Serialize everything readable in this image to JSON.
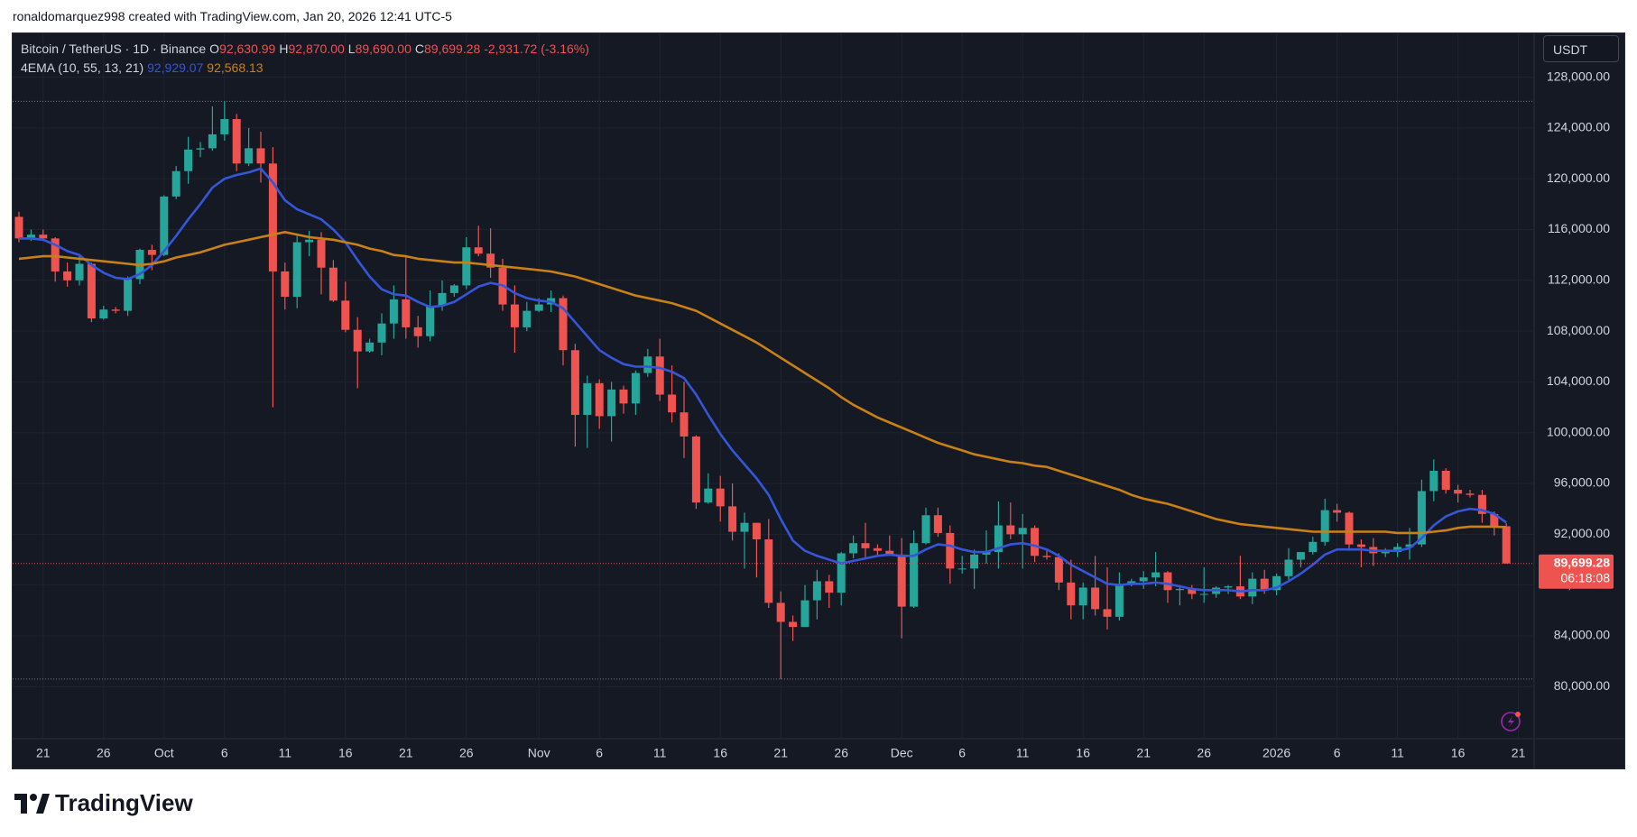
{
  "header": {
    "attribution": "ronaldomarquez998 created with TradingView.com, Jan 20, 2026 12:41 UTC-5"
  },
  "chart_data": {
    "type": "candlestick",
    "symbol": "Bitcoin / TetherUS · 1D · Binance",
    "ohlc_legend": [
      {
        "key": "O",
        "label": "92,630.99"
      },
      {
        "key": "H",
        "label": "92,870.00"
      },
      {
        "key": "L",
        "label": "89,690.00"
      },
      {
        "key": "C",
        "label": "89,699.28"
      }
    ],
    "change_label": "-2,931.72 (-3.16%)",
    "currency": "USDT",
    "last_price_label": "89,699.28",
    "countdown": "06:18:08",
    "categories": [
      null,
      null,
      "21",
      null,
      null,
      null,
      null,
      "26",
      null,
      null,
      null,
      null,
      "Oct",
      null,
      null,
      null,
      null,
      "6",
      null,
      null,
      null,
      null,
      "11",
      null,
      null,
      null,
      null,
      "16",
      null,
      null,
      null,
      null,
      "21",
      null,
      null,
      null,
      null,
      "26",
      null,
      null,
      null,
      null,
      null,
      "Nov",
      null,
      null,
      null,
      null,
      "6",
      null,
      null,
      null,
      null,
      "11",
      null,
      null,
      null,
      null,
      "16",
      null,
      null,
      null,
      null,
      "21",
      null,
      null,
      null,
      null,
      "26",
      null,
      null,
      null,
      null,
      "Dec",
      null,
      null,
      null,
      null,
      "6",
      null,
      null,
      null,
      null,
      "11",
      null,
      null,
      null,
      null,
      "16",
      null,
      null,
      null,
      null,
      "21",
      null,
      null,
      null,
      null,
      "26",
      null,
      null,
      null,
      null,
      null,
      "2026",
      null,
      null,
      null,
      null,
      "6",
      null,
      null,
      null,
      null,
      "11",
      null,
      null,
      null,
      null,
      "16",
      null,
      null,
      null,
      null,
      "21"
    ],
    "open": [
      117000,
      115300,
      115600,
      115300,
      112700,
      112000,
      113300,
      109000,
      109700,
      109600,
      112100,
      114400,
      114000,
      118600,
      120600,
      122300,
      122400,
      123500,
      124700,
      121200,
      122400,
      121200,
      112700,
      110700,
      115000,
      115200,
      113000,
      110400,
      108100,
      106400,
      107100,
      108600,
      110500,
      108300,
      107600,
      110000,
      111000,
      111600,
      114600,
      114100,
      113000,
      110100,
      108300,
      109600,
      110100,
      110600,
      106500,
      101400,
      103900,
      101300,
      103400,
      102300,
      104700,
      106000,
      103000,
      101600,
      99700,
      94500,
      95600,
      94200,
      92200,
      92900,
      91600,
      86600,
      85100,
      84700,
      86800,
      88300,
      87400,
      90500,
      91300,
      90900,
      90700,
      90400,
      86300,
      91300,
      93500,
      92100,
      89300,
      89300,
      90400,
      90600,
      92700,
      92000,
      92500,
      90300,
      90200,
      88200,
      86400,
      87800,
      86100,
      85500,
      88100,
      88300,
      88600,
      89000,
      87600,
      87700,
      87300,
      87300,
      87800,
      87900,
      87100,
      88500,
      87600,
      88700,
      90000,
      90600,
      91400,
      93900,
      93700,
      91200,
      91000,
      90500,
      90600,
      91000,
      91200,
      95400,
      97000,
      95500,
      95200,
      95100,
      93600,
      92630.99,
      null
    ],
    "high": [
      117400,
      116000,
      116000,
      115400,
      113400,
      113900,
      113400,
      110000,
      109900,
      112300,
      114500,
      114800,
      118700,
      121000,
      123300,
      122900,
      125700,
      126100,
      125100,
      124000,
      123700,
      122500,
      113400,
      115700,
      115900,
      115800,
      113600,
      111900,
      109100,
      107400,
      109400,
      111600,
      113900,
      109200,
      111200,
      112000,
      111700,
      115400,
      116300,
      116100,
      113700,
      111600,
      110300,
      110600,
      111200,
      110800,
      107000,
      104500,
      104200,
      104000,
      103700,
      104900,
      106600,
      107400,
      105300,
      104000,
      99800,
      96800,
      96600,
      96000,
      93700,
      92900,
      93200,
      87500,
      85600,
      88000,
      89200,
      88800,
      90600,
      91900,
      92900,
      91200,
      91900,
      91700,
      92300,
      94100,
      94100,
      92700,
      90300,
      90800,
      92300,
      94600,
      94500,
      93600,
      92700,
      90700,
      90500,
      90000,
      88200,
      90300,
      89400,
      89000,
      88500,
      89100,
      90600,
      89100,
      88000,
      88000,
      89400,
      87900,
      88000,
      90300,
      89000,
      89200,
      88900,
      90900,
      90600,
      91800,
      94800,
      94400,
      93800,
      91600,
      91700,
      90900,
      91300,
      92500,
      96300,
      97900,
      97200,
      95900,
      95500,
      95500,
      93800,
      92870,
      null
    ],
    "low": [
      115000,
      115100,
      115100,
      111900,
      111500,
      111600,
      108700,
      108900,
      109400,
      109200,
      111700,
      112800,
      113900,
      118400,
      119600,
      121700,
      122200,
      123000,
      120600,
      121000,
      119700,
      102000,
      109700,
      109800,
      113900,
      110900,
      110300,
      107900,
      103500,
      106300,
      106100,
      107400,
      107400,
      106700,
      107200,
      109600,
      110700,
      111300,
      113900,
      112200,
      109600,
      106300,
      108000,
      109500,
      109500,
      105300,
      98900,
      98800,
      100300,
      99300,
      101500,
      101400,
      104400,
      102500,
      100800,
      98000,
      94000,
      94400,
      93000,
      91500,
      89300,
      88600,
      86200,
      80600,
      83600,
      84700,
      85300,
      86200,
      86400,
      90100,
      90200,
      90300,
      90400,
      83800,
      86200,
      91200,
      91800,
      88100,
      88900,
      87700,
      89700,
      89300,
      91600,
      89300,
      89800,
      90000,
      87600,
      85300,
      85300,
      85600,
      84500,
      85200,
      87900,
      87700,
      87900,
      86600,
      86400,
      86900,
      86600,
      87000,
      87300,
      86900,
      86500,
      87300,
      87200,
      88400,
      89400,
      90400,
      91100,
      93000,
      90700,
      89400,
      89500,
      90200,
      90200,
      90000,
      91000,
      94600,
      95200,
      94500,
      94900,
      92900,
      91900,
      89690,
      null
    ],
    "close": [
      115300,
      115600,
      115300,
      112700,
      112000,
      113300,
      109000,
      109700,
      109600,
      112100,
      114400,
      114000,
      118600,
      120600,
      122300,
      122400,
      123500,
      124700,
      121200,
      122400,
      121200,
      112700,
      110700,
      115000,
      115200,
      113000,
      110400,
      108100,
      106400,
      107100,
      108600,
      110500,
      108300,
      107600,
      110000,
      111000,
      111600,
      114600,
      114100,
      113000,
      110100,
      108300,
      109600,
      110100,
      110600,
      106500,
      101400,
      103900,
      101300,
      103400,
      102300,
      104700,
      106000,
      103000,
      101600,
      99700,
      94500,
      95600,
      94200,
      92200,
      92900,
      91600,
      86600,
      85100,
      84700,
      86800,
      88300,
      87400,
      90500,
      91300,
      90900,
      90700,
      90400,
      86300,
      91300,
      93500,
      92100,
      89300,
      89300,
      90400,
      90600,
      92700,
      92000,
      92500,
      90300,
      90200,
      88200,
      86400,
      87800,
      86100,
      85500,
      88100,
      88300,
      88600,
      89000,
      87600,
      87700,
      87300,
      87300,
      87800,
      87900,
      87100,
      88500,
      87600,
      88700,
      90000,
      90600,
      91400,
      93900,
      93700,
      91200,
      91000,
      90500,
      90600,
      91000,
      91200,
      95400,
      97000,
      95500,
      95200,
      95100,
      93600,
      92600,
      89699.28,
      null
    ],
    "up_color": "#26a69a",
    "down_color": "#ef5350",
    "indicator": {
      "name": "4EMA (10, 55, 13, 21)",
      "series": [
        {
          "color": "#3556d8",
          "value_label": "92,929.07",
          "values": [
            115300,
            115300,
            115200,
            114800,
            114300,
            114000,
            113200,
            112600,
            112200,
            112100,
            112500,
            113200,
            114300,
            115500,
            116800,
            118000,
            119300,
            120000,
            120300,
            120500,
            120800,
            119700,
            118300,
            117600,
            117200,
            116800,
            116000,
            115000,
            113600,
            112300,
            111300,
            110900,
            110800,
            110300,
            109900,
            110000,
            110300,
            110900,
            111500,
            111800,
            111600,
            111000,
            110600,
            110400,
            110300,
            109800,
            108700,
            107600,
            106500,
            105900,
            105400,
            105200,
            105200,
            105100,
            104800,
            104300,
            103000,
            101400,
            99900,
            98600,
            97500,
            96400,
            95100,
            93200,
            91500,
            90700,
            90300,
            90000,
            89700,
            89900,
            90100,
            90300,
            90400,
            90300,
            90300,
            90800,
            91200,
            91100,
            90800,
            90600,
            90600,
            90900,
            91200,
            91300,
            91100,
            90800,
            90300,
            89600,
            89100,
            88600,
            88100,
            88000,
            88100,
            88100,
            88200,
            88100,
            87900,
            87700,
            87600,
            87600,
            87600,
            87500,
            87600,
            87600,
            87800,
            88300,
            88900,
            89600,
            90400,
            90800,
            90800,
            90800,
            90700,
            90700,
            90700,
            90900,
            91700,
            92700,
            93400,
            93800,
            94000,
            93900,
            93600,
            92929.07,
            null
          ]
        },
        {
          "color": "#c98117",
          "value_label": "92,568.13",
          "values": [
            113700,
            113800,
            113900,
            113900,
            113800,
            113700,
            113600,
            113500,
            113400,
            113300,
            113200,
            113300,
            113500,
            113800,
            114000,
            114200,
            114500,
            114800,
            115000,
            115200,
            115400,
            115600,
            115800,
            115600,
            115400,
            115300,
            115200,
            115000,
            114800,
            114500,
            114300,
            114000,
            113900,
            113700,
            113600,
            113500,
            113400,
            113400,
            113300,
            113200,
            113100,
            113000,
            112900,
            112800,
            112700,
            112500,
            112300,
            112000,
            111700,
            111400,
            111100,
            110800,
            110600,
            110400,
            110200,
            109900,
            109600,
            109100,
            108600,
            108100,
            107600,
            107100,
            106500,
            105900,
            105300,
            104700,
            104100,
            103500,
            102800,
            102200,
            101700,
            101200,
            100800,
            100400,
            100000,
            99600,
            99200,
            98900,
            98600,
            98300,
            98100,
            97900,
            97700,
            97600,
            97400,
            97300,
            97000,
            96700,
            96400,
            96100,
            95800,
            95500,
            95100,
            94800,
            94600,
            94400,
            94100,
            93800,
            93500,
            93200,
            93000,
            92800,
            92700,
            92600,
            92500,
            92400,
            92300,
            92200,
            92200,
            92200,
            92200,
            92200,
            92200,
            92200,
            92100,
            92100,
            92100,
            92200,
            92300,
            92500,
            92600,
            92600,
            92600,
            92568.13,
            null
          ]
        }
      ]
    },
    "ylim": [
      75900,
      131450
    ],
    "yticks": [
      {
        "value": 80000,
        "label": "80,000.00"
      },
      {
        "value": 84000,
        "label": "84,000.00"
      },
      {
        "value": 88000,
        "label": "88,000.00"
      },
      {
        "value": 92000,
        "label": "92,000.00"
      },
      {
        "value": 96000,
        "label": "96,000.00"
      },
      {
        "value": 100000,
        "label": "100,000.00"
      },
      {
        "value": 104000,
        "label": "104,000.00"
      },
      {
        "value": 108000,
        "label": "108,000.00"
      },
      {
        "value": 112000,
        "label": "112,000.00"
      },
      {
        "value": 116000,
        "label": "116,000.00"
      },
      {
        "value": 120000,
        "label": "120,000.00"
      },
      {
        "value": 124000,
        "label": "124,000.00"
      },
      {
        "value": 128000,
        "label": "128,000.00"
      }
    ],
    "grid": true
  },
  "footer": {
    "brand": "TradingView"
  }
}
